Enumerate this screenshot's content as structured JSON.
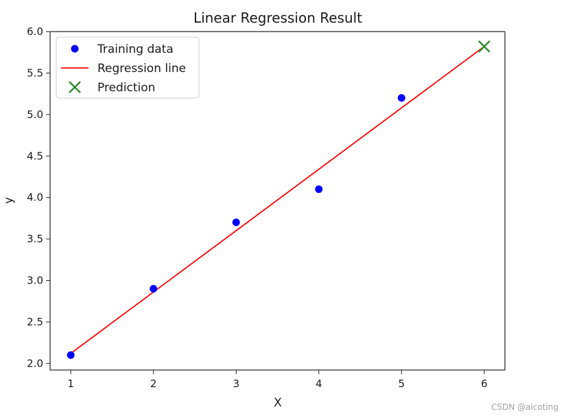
{
  "chart_data": {
    "type": "scatter",
    "title": "Linear Regression Result",
    "xlabel": "X",
    "ylabel": "y",
    "xlim": [
      0.75,
      6.25
    ],
    "ylim": [
      1.92,
      6.0
    ],
    "xticks": [
      "1",
      "2",
      "3",
      "4",
      "5",
      "6"
    ],
    "yticks": [
      "2.0",
      "2.5",
      "3.0",
      "3.5",
      "4.0",
      "4.5",
      "5.0",
      "5.5",
      "6.0"
    ],
    "grid": false,
    "legend_position": "top-left",
    "series": [
      {
        "name": "Training data",
        "kind": "scatter",
        "color": "#0000ff",
        "x": [
          1,
          2,
          3,
          4,
          5
        ],
        "y": [
          2.1,
          2.9,
          3.7,
          4.1,
          5.2
        ]
      },
      {
        "name": "Regression line",
        "kind": "line",
        "color": "#ff0000",
        "x": [
          1,
          6
        ],
        "y": [
          2.12,
          5.82
        ]
      },
      {
        "name": "Prediction",
        "kind": "marker-x",
        "color": "#2e8b2e",
        "x": [
          6
        ],
        "y": [
          5.82
        ]
      }
    ]
  },
  "watermark": "CSDN @aicoting"
}
